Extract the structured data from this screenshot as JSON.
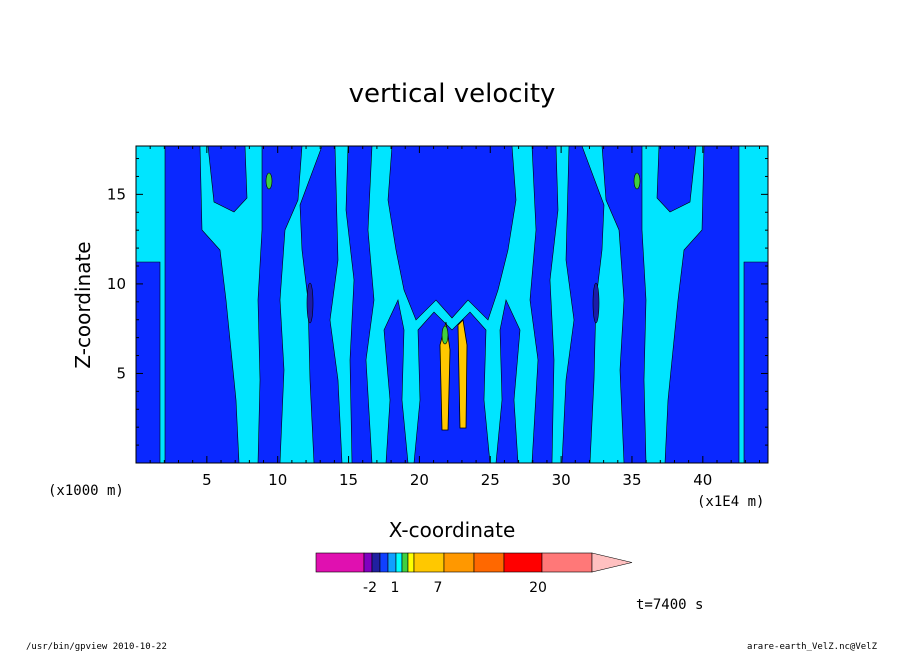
{
  "chart_data": {
    "type": "heatmap",
    "title": "vertical velocity",
    "xlabel": "X-coordinate",
    "ylabel": "Z-coordinate",
    "x_unit_left": "(x1000 m)",
    "x_unit_right": "(x1E4 m)",
    "xlim": [
      0,
      44.6
    ],
    "ylim": [
      0,
      17.7
    ],
    "x_ticks": [
      5,
      10,
      15,
      20,
      25,
      30,
      35,
      40
    ],
    "y_ticks": [
      5,
      10,
      15
    ],
    "colorbar": {
      "colors": [
        "#e010b0",
        "#8000c0",
        "#2020a0",
        "#1040ff",
        "#10a0ff",
        "#00ffff",
        "#40d040",
        "#ffff00",
        "#ffc800",
        "#ff9800",
        "#ff6800",
        "#ff0000",
        "#ff7878",
        "#ffc0c0"
      ],
      "tick_labels": [
        "-2",
        "1",
        "7",
        "20"
      ]
    },
    "time_label": "t=7400 s",
    "field_colors": {
      "background": "#00e5ff",
      "negative": "#0a28ff",
      "strong_negative": "#1c1ca8",
      "positive": "#40d040",
      "strong_positive": "#ffc800"
    }
  },
  "footer": {
    "left": "/usr/bin/gpview   2010-10-22",
    "right": "arare-earth_VelZ.nc@VelZ"
  }
}
